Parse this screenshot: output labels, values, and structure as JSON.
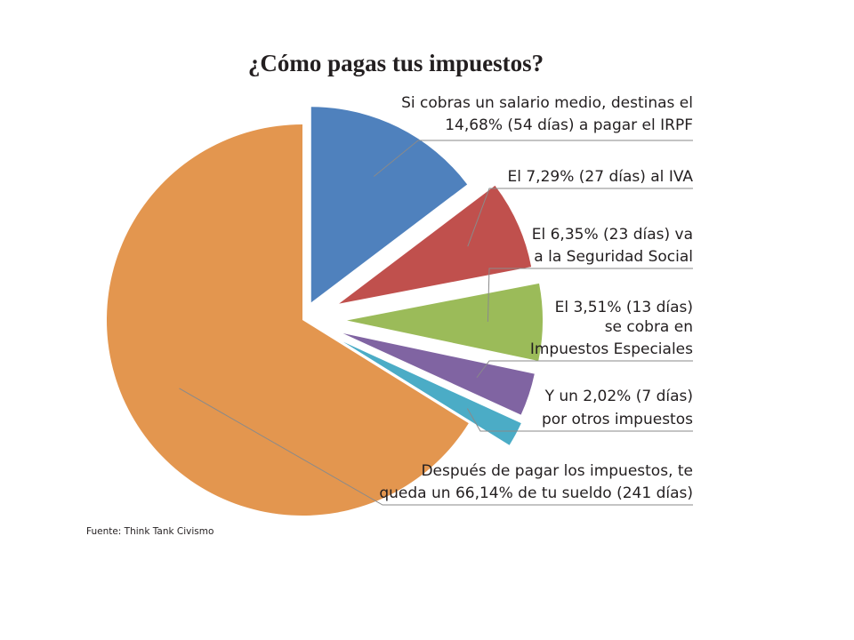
{
  "chart_data": {
    "type": "pie",
    "title": "¿Cómo pagas tus impuestos?",
    "slices": [
      {
        "label_lines": [
          "Si cobras un salario medio, destinas el",
          "14,68% (54 días) a pagar el IRPF"
        ],
        "value": 14.68,
        "color": "#4f81bd",
        "exploded": true
      },
      {
        "label_lines": [
          "El 7,29% (27 días) al IVA"
        ],
        "value": 7.29,
        "color": "#c0504d",
        "exploded": true
      },
      {
        "label_lines": [
          "El 6,35% (23 días) va",
          "a la Seguridad Social"
        ],
        "value": 6.35,
        "color": "#9bbb59",
        "exploded": true
      },
      {
        "label_lines": [
          "El 3,51% (13 días)",
          "se cobra en",
          "Impuestos Especiales"
        ],
        "value": 3.51,
        "color": "#8064a2",
        "exploded": true
      },
      {
        "label_lines": [
          "Y un 2,02% (7 días)",
          "por otros impuestos"
        ],
        "value": 2.02,
        "color": "#4bacc6",
        "exploded": true
      },
      {
        "label_lines": [
          "Después de pagar los impuestos, te",
          "queda un 66,14% de tu sueldo (241 días)"
        ],
        "value": 66.14,
        "color": "#e3964f",
        "exploded": false
      }
    ],
    "source": "Fuente: Think Tank Civismo"
  }
}
